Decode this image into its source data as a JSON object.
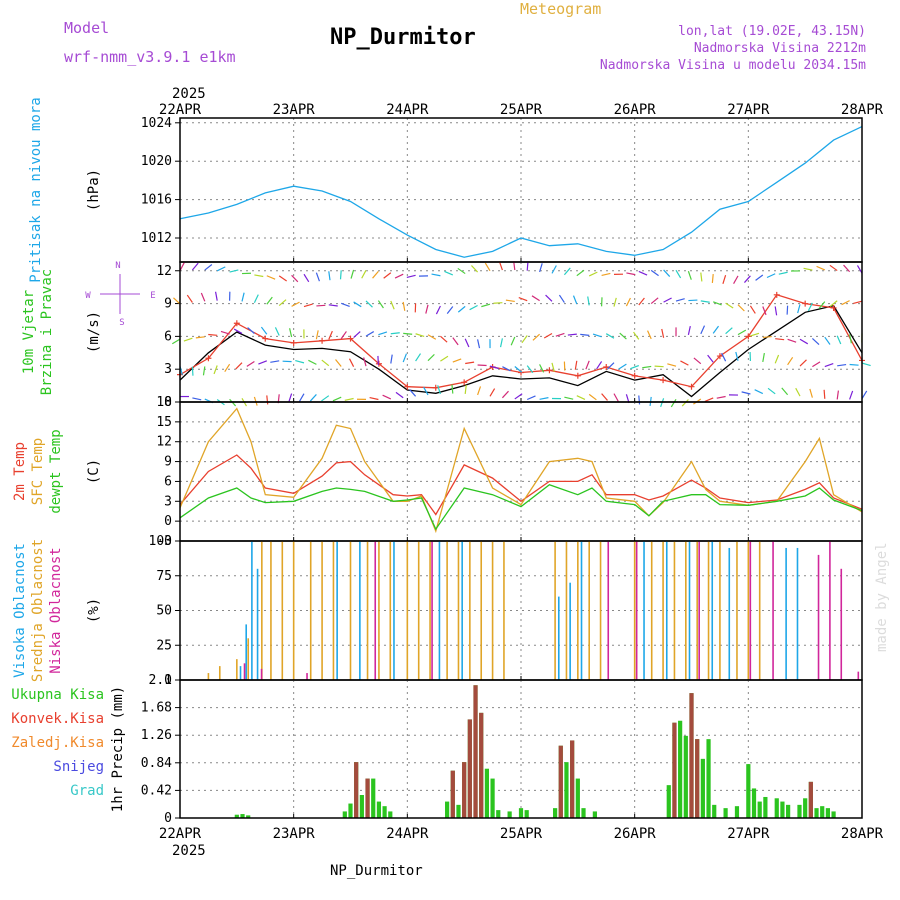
{
  "header": {
    "model_label": "Model",
    "model_name": "wrf-nmm_v3.9.1 e1km",
    "title": "NP_Durmitor",
    "meteogram": "Meteogram",
    "lonlat": "lon,lat (19.02E, 43.15N)",
    "altitude": "Nadmorska Visina 2212m",
    "model_altitude": "Nadmorska Visina u modelu 2034.15m",
    "footer": "NP_Durmitor",
    "year_top": "2025",
    "year_bottom": "2025",
    "made_by": "made by Angel"
  },
  "colors": {
    "pressure": "#1ea7e8",
    "wind_speed": "#000000",
    "gust": "#e8402f",
    "t2m": "#e8402f",
    "sfc": "#e0a528",
    "dewpt": "#2bc41f",
    "high_cloud": "#1ea7e8",
    "mid_cloud": "#e0a528",
    "low_cloud": "#d1269b",
    "total_precip": "#2bc41f",
    "conv_precip": "#a44b3d",
    "froz_precip": "#f08a2c",
    "snow": "#4b4be0",
    "graupel": "#38c8c8",
    "label_green": "#2bc41f",
    "label_purple": "#a64bd4",
    "label_gold": "#e0b040"
  },
  "chart_data": [
    {
      "type": "line",
      "panel": "pressure",
      "ylabel": "(hPa)",
      "side_label": [
        "Pritisak na nivou mora"
      ],
      "ylim": [
        1009.5,
        1024.5
      ],
      "yticks": [
        1012,
        1016,
        1020,
        1024
      ],
      "x_days": [
        "22APR",
        "23APR",
        "24APR",
        "25APR",
        "26APR",
        "27APR",
        "28APR"
      ],
      "x": [
        0,
        0.25,
        0.5,
        0.75,
        1.0,
        1.25,
        1.5,
        1.75,
        2.0,
        2.25,
        2.5,
        2.75,
        3.0,
        3.25,
        3.5,
        3.75,
        4.0,
        4.25,
        4.5,
        4.75,
        5.0,
        5.25,
        5.5,
        5.75,
        6.0
      ],
      "series": [
        {
          "name": "Pritisak na nivou mora",
          "values": [
            1014.0,
            1014.6,
            1015.5,
            1016.7,
            1017.4,
            1016.9,
            1015.8,
            1014.0,
            1012.3,
            1010.8,
            1010.0,
            1010.6,
            1012.0,
            1011.2,
            1011.4,
            1010.6,
            1010.2,
            1010.8,
            1012.6,
            1015.0,
            1015.8,
            1017.8,
            1019.8,
            1022.2,
            1023.6
          ]
        }
      ]
    },
    {
      "type": "line",
      "panel": "wind",
      "ylabel": "(m/s)",
      "side_label": [
        "10m Vjetar",
        "Brzina i Pravac"
      ],
      "compass": "N, E, S, W",
      "ylim": [
        0,
        12.8
      ],
      "yticks": [
        0,
        3,
        6,
        9,
        12
      ],
      "x": [
        0,
        0.25,
        0.5,
        0.75,
        1.0,
        1.25,
        1.5,
        1.75,
        2.0,
        2.25,
        2.5,
        2.75,
        3.0,
        3.25,
        3.5,
        3.75,
        4.0,
        4.25,
        4.5,
        4.75,
        5.0,
        5.25,
        5.5,
        5.75,
        6.0
      ],
      "series": [
        {
          "name": "10m Vjetar",
          "values": [
            2.0,
            4.5,
            6.4,
            5.2,
            4.8,
            4.9,
            4.6,
            3.0,
            1.1,
            0.8,
            1.5,
            2.4,
            2.1,
            2.2,
            1.5,
            2.8,
            2.0,
            2.5,
            0.5,
            2.7,
            4.8,
            6.5,
            8.2,
            8.8,
            4.5
          ]
        },
        {
          "name": "Udar vjetra",
          "values": [
            2.5,
            4.0,
            7.2,
            5.8,
            5.4,
            5.6,
            5.8,
            3.5,
            1.4,
            1.3,
            1.8,
            3.2,
            2.7,
            2.9,
            2.4,
            3.2,
            2.4,
            2.0,
            1.4,
            4.2,
            6.0,
            9.8,
            9.0,
            8.6,
            3.8
          ]
        }
      ]
    },
    {
      "type": "line",
      "panel": "temperature",
      "ylabel": "(C)",
      "side_label": [
        "2m Temp",
        "SFC Temp",
        "dewpt Temp"
      ],
      "ylim": [
        -3,
        18
      ],
      "yticks": [
        -3,
        0,
        3,
        6,
        9,
        12,
        15,
        18
      ],
      "x": [
        0,
        0.25,
        0.5,
        0.625,
        0.75,
        1.0,
        1.25,
        1.375,
        1.5,
        1.625,
        1.875,
        2.0,
        2.125,
        2.25,
        2.5,
        2.75,
        3.0,
        3.25,
        3.5,
        3.625,
        3.75,
        4.0,
        4.125,
        4.25,
        4.5,
        4.625,
        4.75,
        5.0,
        5.25,
        5.5,
        5.625,
        5.75,
        6.0
      ],
      "series": [
        {
          "name": "2m Temp",
          "values": [
            2.5,
            7.5,
            10.0,
            8.0,
            5.0,
            4.2,
            6.8,
            8.8,
            9.0,
            7.0,
            4.0,
            3.8,
            4.0,
            1.0,
            8.5,
            6.5,
            3.0,
            6.0,
            6.0,
            7.0,
            4.0,
            4.0,
            3.2,
            3.8,
            6.2,
            5.0,
            3.5,
            2.8,
            3.2,
            4.8,
            5.8,
            3.5,
            1.8
          ]
        },
        {
          "name": "SFC Temp",
          "values": [
            2.0,
            12.0,
            17.0,
            12.0,
            4.0,
            3.6,
            9.5,
            14.5,
            14.0,
            9.0,
            3.0,
            3.0,
            3.8,
            -1.5,
            14.0,
            5.0,
            2.5,
            9.0,
            9.5,
            9.0,
            3.5,
            3.0,
            0.8,
            2.8,
            9.0,
            4.8,
            3.0,
            2.4,
            3.0,
            9.0,
            12.5,
            4.0,
            1.4
          ]
        },
        {
          "name": "dewpt Temp",
          "values": [
            0.5,
            3.5,
            5.0,
            3.5,
            2.8,
            3.0,
            4.5,
            5.0,
            4.8,
            4.5,
            3.0,
            3.2,
            3.5,
            -1.2,
            5.0,
            4.0,
            2.2,
            5.5,
            4.0,
            5.0,
            3.0,
            2.5,
            0.8,
            3.0,
            4.0,
            4.0,
            2.5,
            2.4,
            3.0,
            3.8,
            5.0,
            3.2,
            1.6
          ]
        }
      ]
    },
    {
      "type": "bar",
      "panel": "cloud",
      "ylabel": "(%)",
      "side_label": [
        "Visoka Oblacnost",
        "Srednja Oblacnost",
        "Niska Oblacnost"
      ],
      "ylim": [
        0,
        100
      ],
      "yticks": [
        0,
        25,
        50,
        75,
        100
      ],
      "series": [
        {
          "name": "Visoka Oblacnost",
          "points": [
            [
              0.55,
              10
            ],
            [
              0.6,
              40
            ],
            [
              0.65,
              100
            ],
            [
              0.7,
              80
            ],
            [
              1.4,
              100
            ],
            [
              1.6,
              100
            ],
            [
              1.9,
              100
            ],
            [
              2.3,
              100
            ],
            [
              2.5,
              100
            ],
            [
              3.35,
              60
            ],
            [
              3.45,
              70
            ],
            [
              3.55,
              100
            ],
            [
              4.1,
              100
            ],
            [
              4.3,
              100
            ],
            [
              4.5,
              100
            ],
            [
              4.7,
              100
            ],
            [
              4.85,
              95
            ],
            [
              5.35,
              95
            ],
            [
              5.45,
              95
            ]
          ]
        },
        {
          "name": "Srednja Oblacnost",
          "points": [
            [
              0.25,
              5
            ],
            [
              0.35,
              10
            ],
            [
              0.5,
              15
            ],
            [
              0.6,
              30
            ],
            [
              0.72,
              100
            ],
            [
              0.8,
              100
            ],
            [
              0.9,
              100
            ],
            [
              1.0,
              100
            ],
            [
              1.15,
              100
            ],
            [
              1.25,
              100
            ],
            [
              1.35,
              100
            ],
            [
              1.5,
              100
            ],
            [
              1.65,
              100
            ],
            [
              1.75,
              100
            ],
            [
              1.85,
              100
            ],
            [
              2.0,
              100
            ],
            [
              2.1,
              100
            ],
            [
              2.2,
              100
            ],
            [
              2.35,
              100
            ],
            [
              2.45,
              100
            ],
            [
              2.55,
              100
            ],
            [
              2.65,
              100
            ],
            [
              2.75,
              100
            ],
            [
              2.85,
              100
            ],
            [
              3.3,
              100
            ],
            [
              3.4,
              100
            ],
            [
              3.5,
              100
            ],
            [
              3.6,
              100
            ],
            [
              3.7,
              100
            ],
            [
              4.0,
              100
            ],
            [
              4.15,
              100
            ],
            [
              4.25,
              100
            ],
            [
              4.35,
              100
            ],
            [
              4.45,
              100
            ],
            [
              4.55,
              100
            ],
            [
              4.65,
              100
            ],
            [
              4.75,
              100
            ],
            [
              4.9,
              100
            ],
            [
              5.0,
              100
            ],
            [
              5.1,
              100
            ]
          ]
        },
        {
          "name": "Niska Oblacnost",
          "points": [
            [
              0.55,
              12
            ],
            [
              0.7,
              8
            ],
            [
              1.1,
              5
            ],
            [
              1.7,
              100
            ],
            [
              2.2,
              100
            ],
            [
              3.75,
              100
            ],
            [
              4.0,
              100
            ],
            [
              4.55,
              100
            ],
            [
              5.0,
              100
            ],
            [
              5.2,
              100
            ],
            [
              5.6,
              90
            ],
            [
              5.7,
              100
            ],
            [
              5.8,
              80
            ],
            [
              5.95,
              6
            ]
          ]
        }
      ]
    },
    {
      "type": "bar",
      "panel": "precip",
      "ylabel": "1hr Precip (mm)",
      "side_label": [
        "Ukupna Kisa",
        "Konvek.Kisa",
        "Zaledj.Kisa",
        "Snijeg",
        "Grad"
      ],
      "ylim": [
        0,
        2.1
      ],
      "yticks": [
        0,
        0.42,
        0.84,
        1.26,
        1.68,
        2.1
      ],
      "series": [
        {
          "name": "Ukupna Kisa",
          "points": [
            [
              0.5,
              0.05
            ],
            [
              0.55,
              0.06
            ],
            [
              0.6,
              0.04
            ],
            [
              1.45,
              0.1
            ],
            [
              1.5,
              0.22
            ],
            [
              1.55,
              0.85
            ],
            [
              1.6,
              0.35
            ],
            [
              1.65,
              0.6
            ],
            [
              1.7,
              0.6
            ],
            [
              1.75,
              0.25
            ],
            [
              1.8,
              0.18
            ],
            [
              1.85,
              0.1
            ],
            [
              2.35,
              0.25
            ],
            [
              2.4,
              0.72
            ],
            [
              2.45,
              0.2
            ],
            [
              2.5,
              0.85
            ],
            [
              2.55,
              1.5
            ],
            [
              2.6,
              2.02
            ],
            [
              2.65,
              1.6
            ],
            [
              2.7,
              0.75
            ],
            [
              2.75,
              0.6
            ],
            [
              2.8,
              0.12
            ],
            [
              2.9,
              0.1
            ],
            [
              3.0,
              0.15
            ],
            [
              3.05,
              0.12
            ],
            [
              3.3,
              0.15
            ],
            [
              3.35,
              1.1
            ],
            [
              3.4,
              0.85
            ],
            [
              3.45,
              1.18
            ],
            [
              3.5,
              0.6
            ],
            [
              3.55,
              0.15
            ],
            [
              3.65,
              0.1
            ],
            [
              4.3,
              0.5
            ],
            [
              4.35,
              1.45
            ],
            [
              4.4,
              1.48
            ],
            [
              4.45,
              1.25
            ],
            [
              4.5,
              1.9
            ],
            [
              4.55,
              1.2
            ],
            [
              4.6,
              0.9
            ],
            [
              4.65,
              1.2
            ],
            [
              4.7,
              0.2
            ],
            [
              4.8,
              0.15
            ],
            [
              4.9,
              0.18
            ],
            [
              5.0,
              0.82
            ],
            [
              5.05,
              0.45
            ],
            [
              5.1,
              0.25
            ],
            [
              5.15,
              0.32
            ],
            [
              5.25,
              0.3
            ],
            [
              5.3,
              0.25
            ],
            [
              5.35,
              0.2
            ],
            [
              5.45,
              0.2
            ],
            [
              5.5,
              0.3
            ],
            [
              5.55,
              0.55
            ],
            [
              5.6,
              0.15
            ],
            [
              5.65,
              0.18
            ],
            [
              5.7,
              0.15
            ],
            [
              5.75,
              0.1
            ]
          ]
        },
        {
          "name": "Konvek.Kisa",
          "points": [
            [
              1.55,
              0.85
            ],
            [
              1.65,
              0.6
            ],
            [
              2.4,
              0.72
            ],
            [
              2.5,
              0.85
            ],
            [
              2.55,
              1.5
            ],
            [
              2.6,
              2.02
            ],
            [
              2.65,
              1.6
            ],
            [
              3.35,
              1.1
            ],
            [
              3.45,
              1.18
            ],
            [
              4.35,
              1.45
            ],
            [
              4.5,
              1.9
            ],
            [
              4.55,
              1.2
            ],
            [
              5.55,
              0.55
            ]
          ]
        },
        {
          "name": "Zaledj.Kisa",
          "points": []
        },
        {
          "name": "Snijeg",
          "points": []
        },
        {
          "name": "Grad",
          "points": []
        }
      ]
    }
  ]
}
